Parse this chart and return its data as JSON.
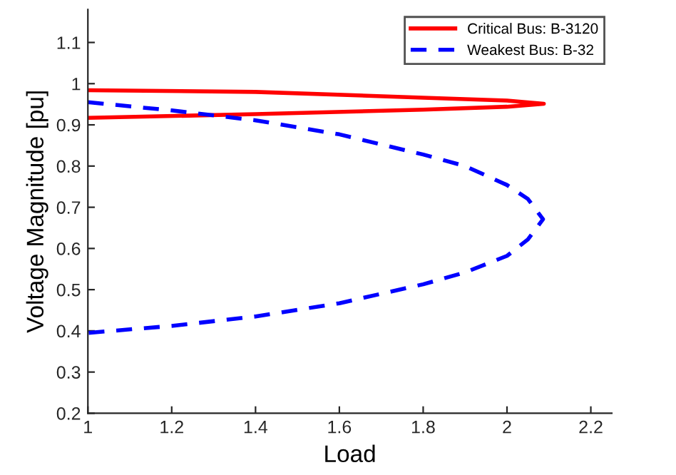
{
  "chart_data": {
    "type": "line",
    "xlabel": "Load",
    "ylabel": "Voltage Magnitude [pu]",
    "xlim": [
      1,
      2.25
    ],
    "xticks": [
      1,
      1.2,
      1.4,
      1.6,
      1.8,
      2,
      2.2
    ],
    "ylim": [
      0.2,
      1.18
    ],
    "yticks": [
      0.2,
      0.3,
      0.4,
      0.5,
      0.6,
      0.7,
      0.8,
      0.9,
      1,
      1.1
    ],
    "grid": false,
    "legend": "top right",
    "series": [
      {
        "name": "Critical Bus: B-3120",
        "color": "#ff0000",
        "line_style": "solid",
        "x": [
          1.0,
          1.4,
          1.8,
          2.0,
          2.088,
          2.0,
          1.8,
          1.4,
          1.0
        ],
        "values": [
          0.984,
          0.98,
          0.966,
          0.959,
          0.951,
          0.944,
          0.937,
          0.926,
          0.917
        ]
      },
      {
        "name": "Weakest Bus: B-32",
        "color": "#0000ff",
        "line_style": "dashed",
        "x": [
          1.0,
          1.2,
          1.4,
          1.6,
          1.8,
          1.9,
          2.0,
          2.05,
          2.086,
          2.05,
          2.0,
          1.9,
          1.8,
          1.6,
          1.4,
          1.2,
          1.0
        ],
        "values": [
          0.955,
          0.935,
          0.911,
          0.877,
          0.828,
          0.8,
          0.754,
          0.72,
          0.671,
          0.622,
          0.582,
          0.542,
          0.513,
          0.467,
          0.435,
          0.412,
          0.395
        ]
      }
    ]
  }
}
